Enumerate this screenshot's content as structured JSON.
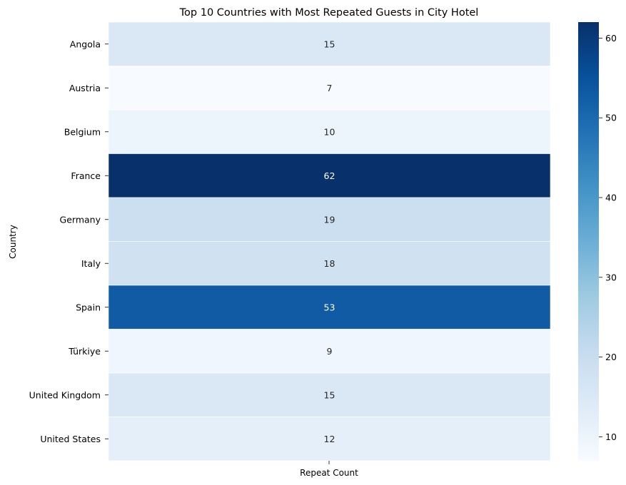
{
  "chart_data": {
    "type": "heatmap",
    "title": "Top 10 Countries with Most Repeated Guests in City Hotel",
    "xlabel": "Repeat Count",
    "ylabel": "Country",
    "columns": [
      "Repeat Count"
    ],
    "rows": [
      "Angola",
      "Austria",
      "Belgium",
      "France",
      "Germany",
      "Italy",
      "Spain",
      "Türkiye",
      "United Kingdom",
      "United States"
    ],
    "values": [
      15,
      7,
      10,
      62,
      19,
      18,
      53,
      9,
      15,
      12
    ],
    "colormap": "Blues",
    "colorbar": {
      "min": 7,
      "max": 62,
      "ticks": [
        10,
        20,
        30,
        40,
        50,
        60
      ]
    },
    "annotations": true
  }
}
